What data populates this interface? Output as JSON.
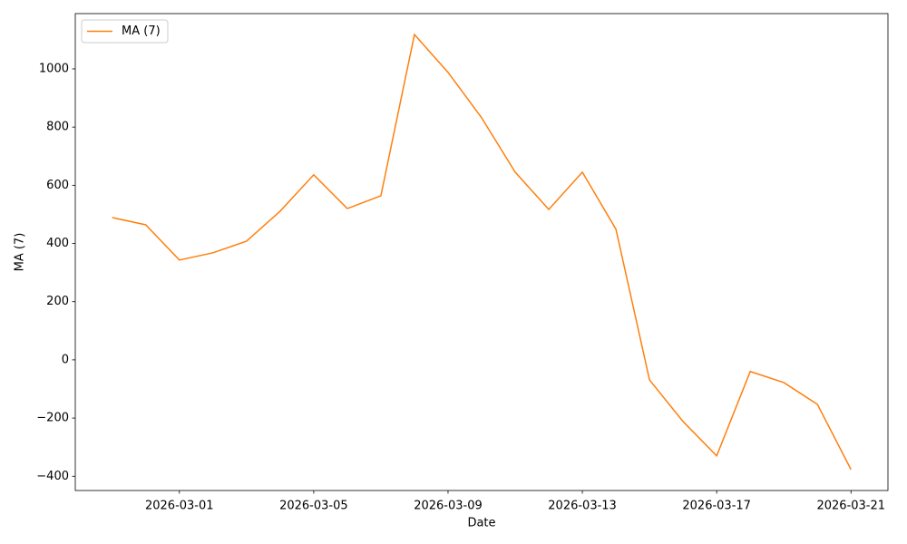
{
  "chart_data": {
    "type": "line",
    "x_label": "Date",
    "y_label": "MA (7)",
    "x": [
      "2026-02-27",
      "2026-02-28",
      "2026-03-01",
      "2026-03-02",
      "2026-03-03",
      "2026-03-04",
      "2026-03-05",
      "2026-03-06",
      "2026-03-07",
      "2026-03-08",
      "2026-03-09",
      "2026-03-10",
      "2026-03-11",
      "2026-03-12",
      "2026-03-13",
      "2026-03-14",
      "2026-03-15",
      "2026-03-16",
      "2026-03-17",
      "2026-03-18",
      "2026-03-19",
      "2026-03-20",
      "2026-03-21"
    ],
    "series": [
      {
        "name": "MA (7)",
        "color": "#ff7f0e",
        "values": [
          489,
          464,
          343,
          368,
          408,
          511,
          636,
          520,
          564,
          1118,
          988,
          832,
          645,
          517,
          645,
          449,
          -69,
          -212,
          -330,
          -40,
          -78,
          -153,
          -377
        ]
      }
    ],
    "xlim": [
      "2026-02-25T21:36Z",
      "2026-03-22T02:24Z"
    ],
    "xticks": [
      "2026-03-01",
      "2026-03-05",
      "2026-03-09",
      "2026-03-13",
      "2026-03-17",
      "2026-03-21"
    ],
    "ylim": [
      -449,
      1190
    ],
    "yticks": [
      {
        "value": -400,
        "label": "−400"
      },
      {
        "value": -200,
        "label": "−200"
      },
      0,
      200,
      400,
      600,
      800,
      1000
    ],
    "legend": "upper left"
  }
}
